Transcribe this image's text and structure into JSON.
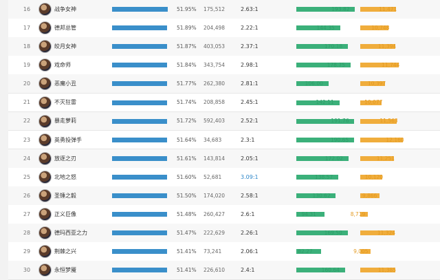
{
  "rows": [
    {
      "rank": "16",
      "name": "战争女神",
      "win": "51.95%",
      "win_frac": 0.5195,
      "games": "175,512",
      "kda": "2.63:1",
      "kda_hi": false,
      "dmg": "193.82",
      "dmg_val": 193.82,
      "gold": "11,471",
      "gold_val": 11471
    },
    {
      "rank": "17",
      "name": "德邦总管",
      "win": "51.89%",
      "win_frac": 0.5189,
      "games": "204,498",
      "kda": "2.22:1",
      "kda_hi": false,
      "dmg": "144.35",
      "dmg_val": 144.35,
      "gold": "10,748",
      "gold_val": 10748
    },
    {
      "rank": "18",
      "name": "皎月女神",
      "win": "51.87%",
      "win_frac": 0.5187,
      "games": "403,053",
      "kda": "2.37:1",
      "kda_hi": false,
      "dmg": "170.18",
      "dmg_val": 170.18,
      "gold": "11,394",
      "gold_val": 11394
    },
    {
      "rank": "19",
      "name": "戏命师",
      "win": "51.84%",
      "win_frac": 0.5184,
      "games": "343,754",
      "kda": "2.98:1",
      "kda_hi": false,
      "dmg": "178.75",
      "dmg_val": 178.75,
      "gold": "11,744",
      "gold_val": 11744
    },
    {
      "rank": "20",
      "name": "恶魔小丑",
      "win": "51.77%",
      "win_frac": 0.5177,
      "games": "262,380",
      "kda": "2.81:1",
      "kda_hi": false,
      "dmg": "106.00",
      "dmg_val": 106.0,
      "gold": "10,397",
      "gold_val": 10397
    },
    {
      "rank": "21",
      "name": "不灭狂雷",
      "win": "51.74%",
      "win_frac": 0.5174,
      "games": "208,858",
      "kda": "2.45:1",
      "kda_hi": false,
      "dmg": "142.11",
      "dmg_val": 142.11,
      "gold": "10,077",
      "gold_val": 10077
    },
    {
      "rank": "22",
      "name": "暴走萝莉",
      "win": "51.72%",
      "win_frac": 0.5172,
      "games": "592,403",
      "kda": "2.52:1",
      "kda_hi": false,
      "dmg": "191.76",
      "dmg_val": 191.76,
      "gold": "11,563",
      "gold_val": 11563
    },
    {
      "rank": "23",
      "name": "英勇投弹手",
      "win": "51.64%",
      "win_frac": 0.5164,
      "games": "34,683",
      "kda": "2.3:1",
      "kda_hi": false,
      "dmg": "190.65",
      "dmg_val": 190.65,
      "gold": "12,160",
      "gold_val": 12160
    },
    {
      "rank": "24",
      "name": "放逐之刃",
      "win": "51.61%",
      "win_frac": 0.5161,
      "games": "143,814",
      "kda": "2.05:1",
      "kda_hi": false,
      "dmg": "172.02",
      "dmg_val": 172.02,
      "gold": "11,251",
      "gold_val": 11251
    },
    {
      "rank": "25",
      "name": "北地之怒",
      "win": "51.60%",
      "win_frac": 0.516,
      "games": "52,681",
      "kda": "3.09:1",
      "kda_hi": true,
      "dmg": "138.57",
      "dmg_val": 138.57,
      "gold": "10,120",
      "gold_val": 10120
    },
    {
      "rank": "26",
      "name": "圣锤之毅",
      "win": "51.50%",
      "win_frac": 0.515,
      "games": "174,020",
      "kda": "2.58:1",
      "kda_hi": false,
      "dmg": "130.62",
      "dmg_val": 130.62,
      "gold": "9,866",
      "gold_val": 9866
    },
    {
      "rank": "27",
      "name": "正义巨像",
      "win": "51.48%",
      "win_frac": 0.5148,
      "games": "260,427",
      "kda": "2.6:1",
      "kda_hi": false,
      "dmg": "94.31",
      "dmg_val": 94.31,
      "gold": "8,719",
      "gold_val": 8719
    },
    {
      "rank": "28",
      "name": "德玛西亚之力",
      "win": "51.47%",
      "win_frac": 0.5147,
      "games": "222,629",
      "kda": "2.26:1",
      "kda_hi": false,
      "dmg": "169.50",
      "dmg_val": 169.5,
      "gold": "11,324",
      "gold_val": 11324
    },
    {
      "rank": "29",
      "name": "荆棘之兴",
      "win": "51.41%",
      "win_frac": 0.5141,
      "games": "73,241",
      "kda": "2.06:1",
      "kda_hi": false,
      "dmg": "82.27",
      "dmg_val": 82.27,
      "gold": "9,005",
      "gold_val": 9005
    },
    {
      "rank": "30",
      "name": "永恒梦魇",
      "win": "51.41%",
      "win_frac": 0.5141,
      "games": "226,610",
      "kda": "2.4:1",
      "kda_hi": false,
      "dmg": "160.64",
      "dmg_val": 160.64,
      "gold": "11,385",
      "gold_val": 11385
    }
  ],
  "colors": {
    "win_bar": "#3a8fca",
    "dmg_bar": "#3bb07a",
    "gold_bar": "#f0ad3c",
    "kda_highlight": "#2b86c9"
  }
}
